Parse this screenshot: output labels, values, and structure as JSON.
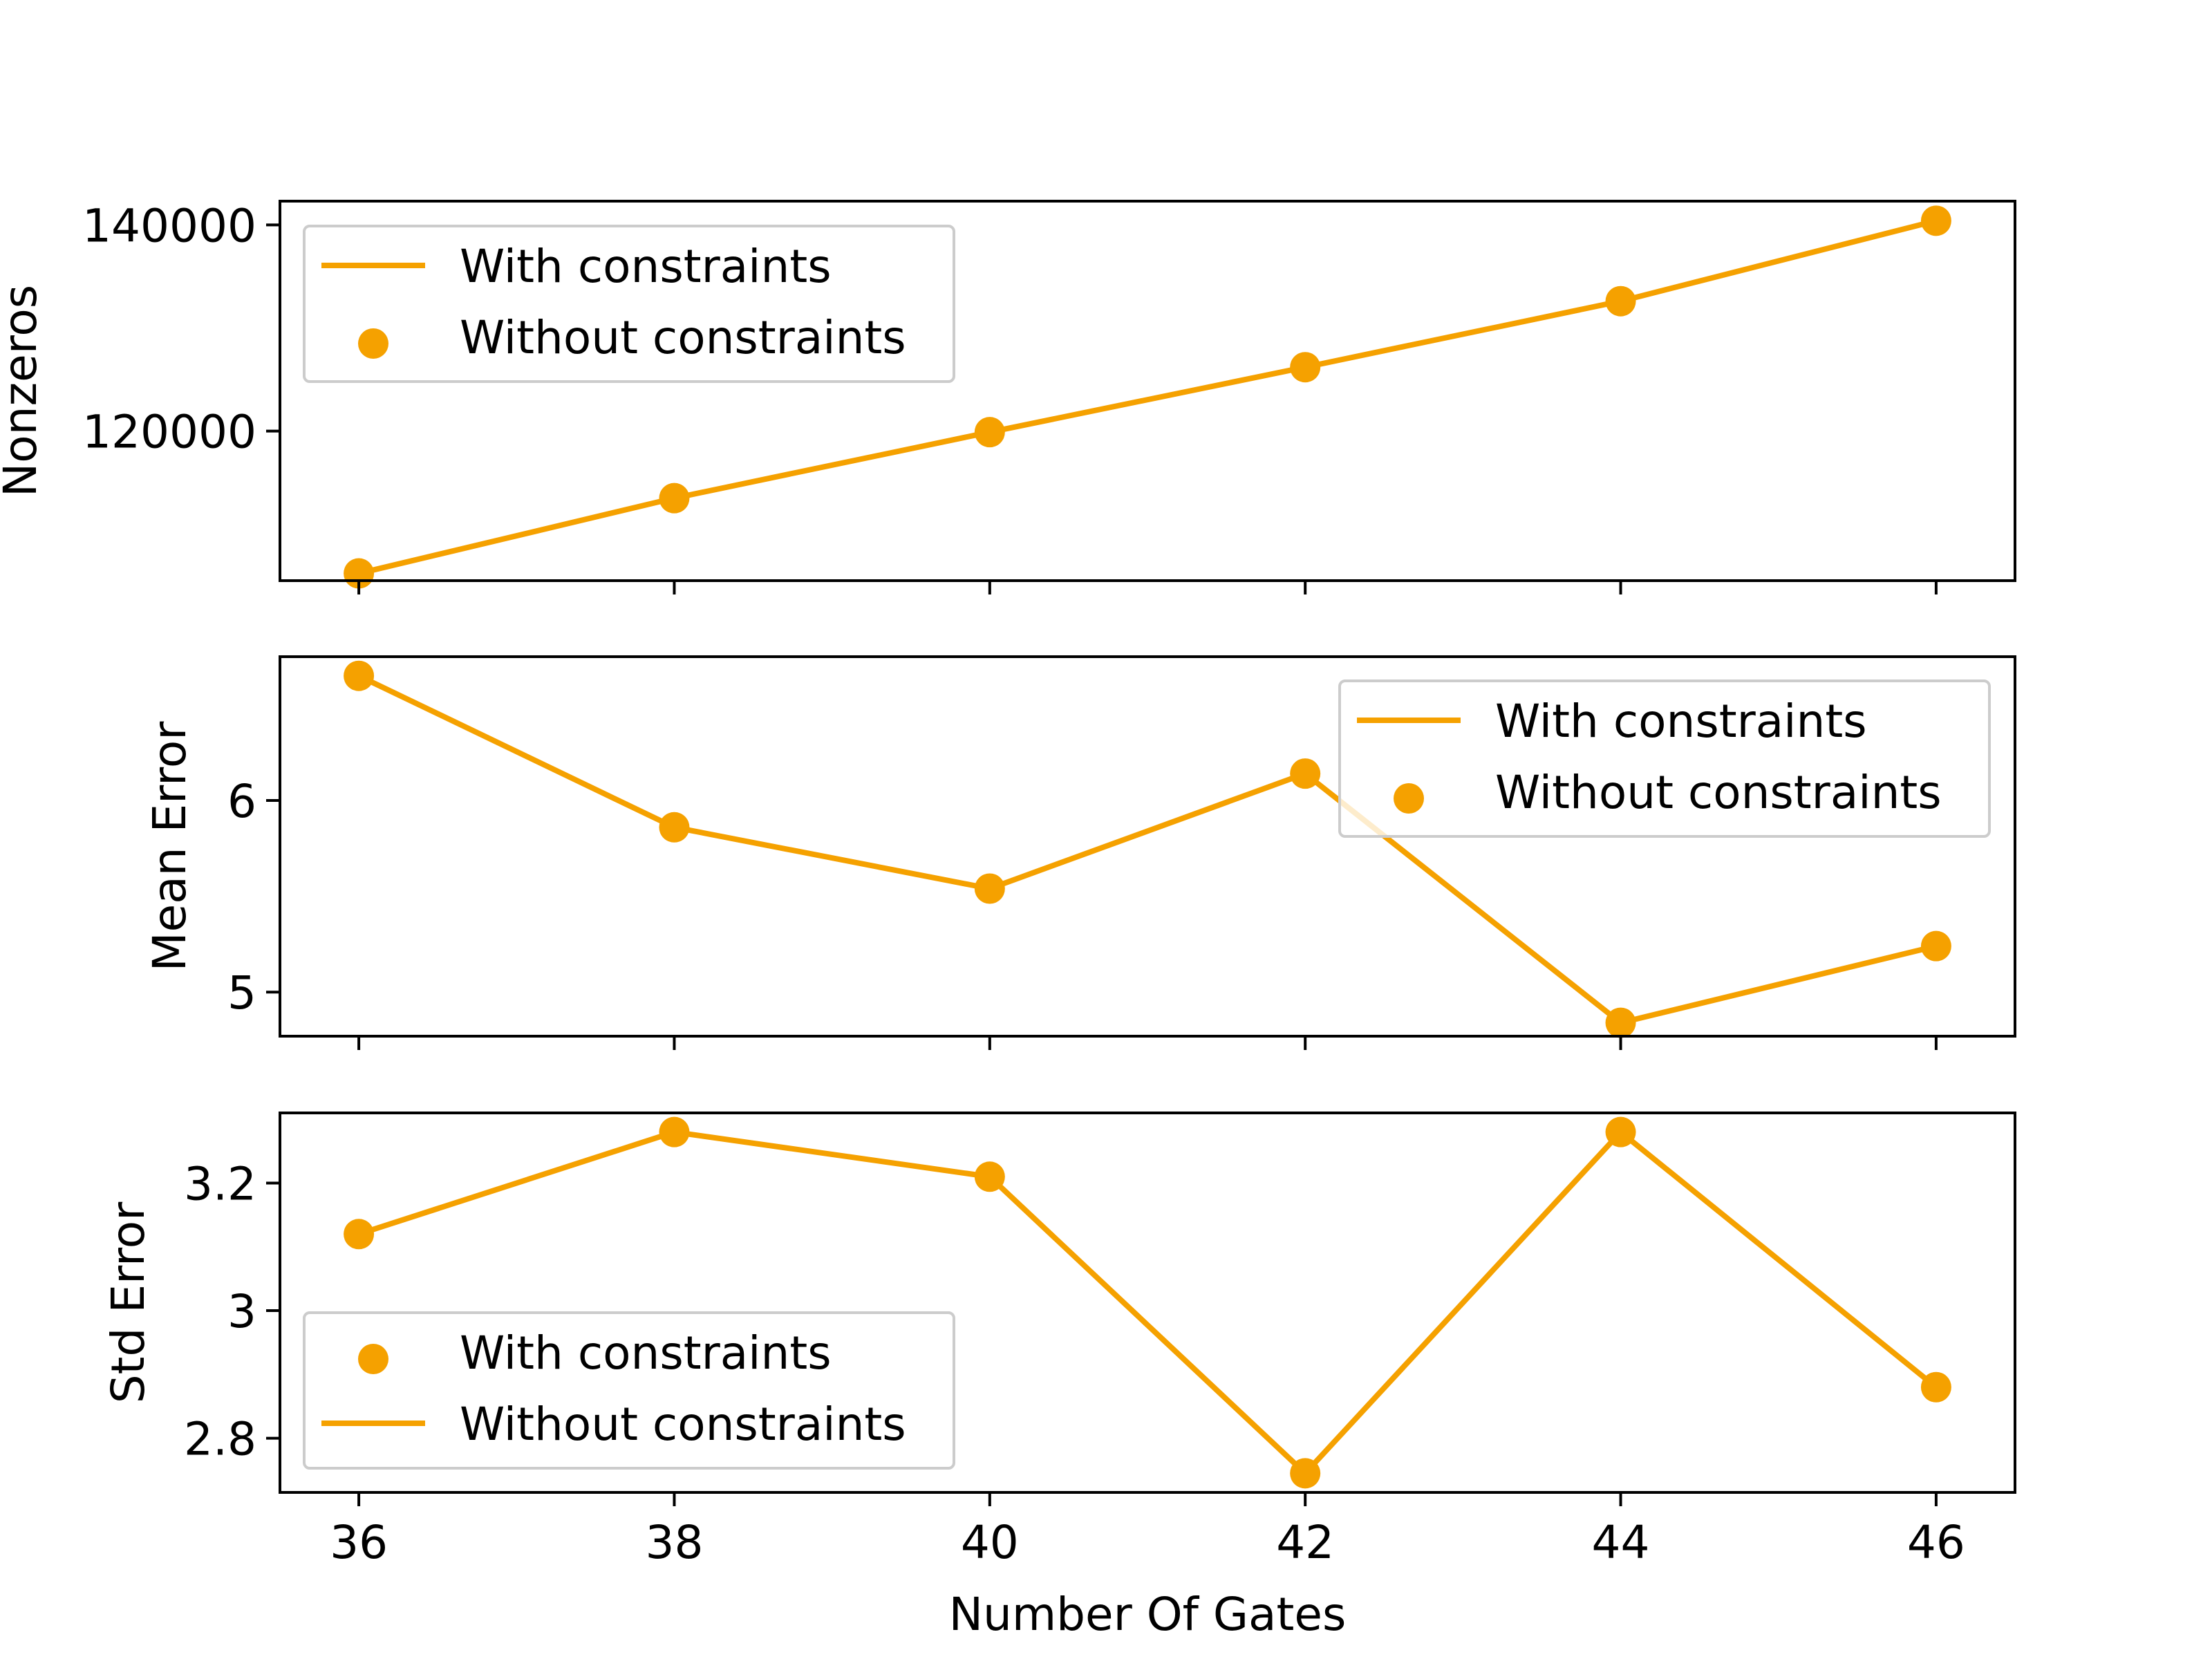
{
  "chart_data": [
    {
      "type": "line",
      "ylabel": "Nonzeros",
      "x": [
        36,
        38,
        40,
        42,
        44,
        46
      ],
      "xlim": [
        35.5,
        46.5
      ],
      "ylim": [
        105500,
        142300
      ],
      "yticks": [
        120000,
        140000
      ],
      "series": [
        {
          "name": "With constraints",
          "kind": "line",
          "values": [
            106200,
            113500,
            119900,
            126200,
            132600,
            140400
          ]
        },
        {
          "name": "Without constraints",
          "kind": "scatter",
          "values": [
            106200,
            113500,
            119900,
            126200,
            132600,
            140400
          ]
        }
      ],
      "legend": "upper-left"
    },
    {
      "type": "line",
      "ylabel": "Mean Error",
      "x": [
        36,
        38,
        40,
        42,
        44,
        46
      ],
      "xlim": [
        35.5,
        46.5
      ],
      "ylim": [
        4.77,
        6.75
      ],
      "yticks": [
        5,
        6
      ],
      "series": [
        {
          "name": "With constraints",
          "kind": "line",
          "values": [
            6.65,
            5.86,
            5.54,
            6.14,
            4.84,
            5.24
          ]
        },
        {
          "name": "Without constraints",
          "kind": "scatter",
          "values": [
            6.65,
            5.86,
            5.54,
            6.14,
            4.84,
            5.24
          ]
        }
      ],
      "legend": "upper-right"
    },
    {
      "type": "line",
      "ylabel": "Std Error",
      "xlabel": "Number Of Gates",
      "x": [
        36,
        38,
        40,
        42,
        44,
        46
      ],
      "xlim": [
        35.5,
        46.5
      ],
      "ylim": [
        2.715,
        3.31
      ],
      "yticks": [
        2.8,
        3.0,
        3.2
      ],
      "xticks": [
        36,
        38,
        40,
        42,
        44,
        46
      ],
      "series": [
        {
          "name": "With constraints",
          "kind": "scatter",
          "values": [
            3.12,
            3.28,
            3.21,
            2.745,
            3.28,
            2.88
          ]
        },
        {
          "name": "Without constraints",
          "kind": "line",
          "values": [
            3.12,
            3.28,
            3.21,
            2.745,
            3.28,
            2.88
          ]
        }
      ],
      "legend": "lower-left"
    }
  ],
  "style": {
    "series_color": "#f5a100",
    "axis_color": "#000000",
    "legend_border": "#cccccc"
  }
}
